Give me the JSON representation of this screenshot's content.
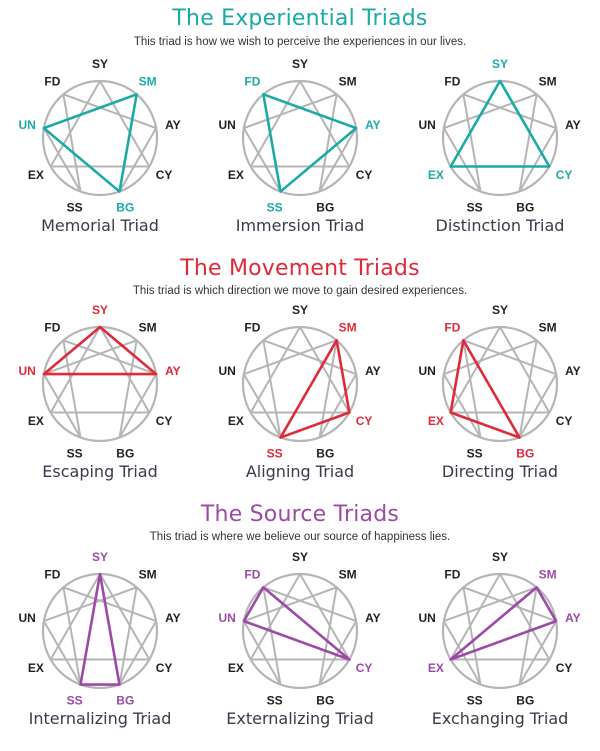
{
  "colors": {
    "gray": "#b5b5b5",
    "label_dark": "#1f1f1f"
  },
  "points": [
    "SY",
    "SM",
    "AY",
    "CY",
    "BG",
    "SS",
    "EX",
    "UN",
    "FD"
  ],
  "sections": [
    {
      "title": "The Experiential Triads",
      "subtitle": "This triad is how we wish to perceive the experiences in our lives.",
      "color": "#1aaba6",
      "diagrams": [
        {
          "label": "Memorial Triad",
          "triad": [
            "SM",
            "BG",
            "UN"
          ]
        },
        {
          "label": "Immersion Triad",
          "triad": [
            "FD",
            "AY",
            "SS"
          ]
        },
        {
          "label": "Distinction Triad",
          "triad": [
            "SY",
            "CY",
            "EX"
          ]
        }
      ]
    },
    {
      "title": "The Movement Triads",
      "subtitle": "This triad is which direction we move to gain desired experiences.",
      "color": "#e0293a",
      "diagrams": [
        {
          "label": "Escaping Triad",
          "triad": [
            "SY",
            "AY",
            "UN"
          ]
        },
        {
          "label": "Aligning Triad",
          "triad": [
            "SM",
            "CY",
            "SS"
          ]
        },
        {
          "label": "Directing Triad",
          "triad": [
            "FD",
            "BG",
            "EX"
          ]
        }
      ]
    },
    {
      "title": "The Source Triads",
      "subtitle": "This triad is where we believe our source of happiness lies.",
      "color": "#9b4aa6",
      "diagrams": [
        {
          "label": "Internalizing Triad",
          "triad": [
            "SY",
            "BG",
            "SS"
          ]
        },
        {
          "label": "Externalizing Triad",
          "triad": [
            "FD",
            "CY",
            "UN"
          ]
        },
        {
          "label": "Exchanging Triad",
          "triad": [
            "SM",
            "AY",
            "EX"
          ]
        }
      ]
    }
  ]
}
